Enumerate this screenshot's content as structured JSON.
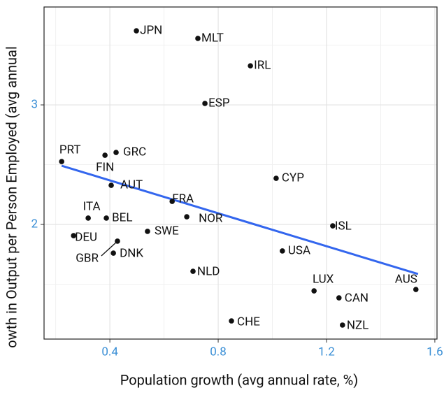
{
  "chart_data": {
    "type": "scatter",
    "x_label": "Population growth (avg annual rate, %)",
    "y_label": "owth in Output per Person Employed (avg annual",
    "xlim": [
      0.157,
      1.608
    ],
    "ylim": [
      1.041,
      3.819
    ],
    "xticks": [
      0.4,
      0.8,
      1.2,
      1.6
    ],
    "yticks": [
      2,
      3
    ],
    "xminor": [
      0.2,
      0.6,
      1.0,
      1.4
    ],
    "yminor": [
      1.5,
      2.5,
      3.5
    ],
    "grid": true,
    "x": [
      0.498,
      0.725,
      0.919,
      0.751,
      0.222,
      0.382,
      0.423,
      0.405,
      1.014,
      0.63,
      0.32,
      0.387,
      0.684,
      0.539,
      0.266,
      1.223,
      0.428,
      0.413,
      1.037,
      0.707,
      1.154,
      1.53,
      1.246,
      0.849,
      1.259
    ],
    "series": [
      {
        "color": "#111111",
        "labels": [
          "JPN",
          "MLT",
          "IRL",
          "ESP",
          "PRT",
          "FIN",
          "GRC",
          "AUT",
          "CYP",
          "FRA",
          "ITA",
          "BEL",
          "NOR",
          "SWE",
          "DEU",
          "ISL",
          "GBR",
          "DNK",
          "USA",
          "NLD",
          "LUX",
          "AUS",
          "CAN",
          "CHE",
          "NZL"
        ],
        "values": [
          3.62,
          3.556,
          3.327,
          3.012,
          2.526,
          2.579,
          2.602,
          2.327,
          2.386,
          2.193,
          2.053,
          2.053,
          2.064,
          1.942,
          1.906,
          1.988,
          1.86,
          1.76,
          1.778,
          1.608,
          1.444,
          1.456,
          1.386,
          1.193,
          1.158
        ]
      }
    ],
    "trendline": {
      "color": "#3366ee",
      "x": [
        0.222,
        1.538
      ],
      "values": [
        2.491,
        1.585
      ]
    }
  }
}
